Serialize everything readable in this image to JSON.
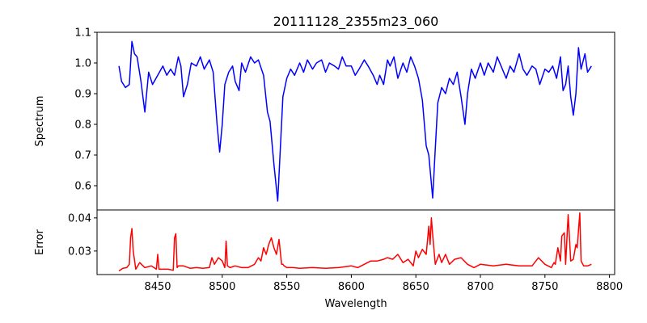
{
  "chart_data": [
    {
      "type": "line",
      "title": "20111128_2355m23_060",
      "ylabel": "Spectrum",
      "xlabel": "",
      "color": "#0000ff",
      "xlim": [
        8403,
        8804
      ],
      "ylim": [
        0.521,
        1.1
      ],
      "yticks": [
        "0.6",
        "0.7",
        "0.8",
        "0.9",
        "1.0",
        "1.1"
      ],
      "x": [
        8420,
        8422,
        8425,
        8428,
        8430,
        8432,
        8434,
        8437,
        8440,
        8443,
        8446,
        8450,
        8454,
        8457,
        8460,
        8463,
        8466,
        8468,
        8470,
        8473,
        8476,
        8480,
        8483,
        8486,
        8490,
        8493,
        8496,
        8498,
        8500,
        8502,
        8505,
        8508,
        8510,
        8513,
        8515,
        8518,
        8522,
        8525,
        8528,
        8532,
        8535,
        8537,
        8540,
        8543,
        8545,
        8547,
        8550,
        8553,
        8556,
        8560,
        8563,
        8566,
        8570,
        8573,
        8577,
        8580,
        8583,
        8587,
        8590,
        8593,
        8596,
        8600,
        8603,
        8606,
        8610,
        8613,
        8617,
        8620,
        8622,
        8625,
        8628,
        8630,
        8633,
        8636,
        8640,
        8643,
        8646,
        8649,
        8652,
        8655,
        8658,
        8660,
        8663,
        8665,
        8667,
        8670,
        8673,
        8676,
        8679,
        8682,
        8685,
        8688,
        8690,
        8693,
        8696,
        8700,
        8703,
        8706,
        8710,
        8713,
        8716,
        8720,
        8723,
        8726,
        8730,
        8733,
        8736,
        8740,
        8743,
        8746,
        8750,
        8753,
        8756,
        8759,
        8762,
        8764,
        8766,
        8768,
        8770,
        8772,
        8774,
        8776,
        8778,
        8781,
        8783,
        8786
      ],
      "y": [
        0.99,
        0.94,
        0.92,
        0.93,
        1.07,
        1.03,
        1.02,
        0.94,
        0.84,
        0.97,
        0.93,
        0.96,
        0.99,
        0.96,
        0.98,
        0.96,
        1.02,
        0.99,
        0.89,
        0.93,
        1.0,
        0.99,
        1.02,
        0.98,
        1.01,
        0.97,
        0.8,
        0.71,
        0.8,
        0.93,
        0.97,
        0.99,
        0.94,
        0.91,
        1.0,
        0.97,
        1.02,
        1.0,
        1.01,
        0.96,
        0.84,
        0.81,
        0.67,
        0.55,
        0.72,
        0.89,
        0.95,
        0.98,
        0.96,
        1.0,
        0.97,
        1.01,
        0.98,
        1.0,
        1.01,
        0.97,
        1.0,
        0.99,
        0.98,
        1.02,
        0.99,
        0.99,
        0.96,
        0.98,
        1.01,
        0.99,
        0.96,
        0.93,
        0.96,
        0.93,
        1.01,
        0.99,
        1.02,
        0.95,
        1.0,
        0.97,
        1.02,
        0.99,
        0.95,
        0.88,
        0.73,
        0.7,
        0.56,
        0.72,
        0.87,
        0.92,
        0.9,
        0.95,
        0.93,
        0.97,
        0.89,
        0.8,
        0.9,
        0.98,
        0.95,
        1.0,
        0.96,
        1.0,
        0.97,
        1.02,
        0.99,
        0.95,
        0.99,
        0.97,
        1.03,
        0.98,
        0.96,
        0.99,
        0.98,
        0.93,
        0.98,
        0.97,
        0.99,
        0.95,
        1.02,
        0.91,
        0.93,
        0.99,
        0.89,
        0.83,
        0.9,
        1.05,
        0.98,
        1.03,
        0.97,
        0.99
      ]
    },
    {
      "type": "line",
      "title": "",
      "ylabel": "Error",
      "xlabel": "Wavelength",
      "color": "#ff0000",
      "xlim": [
        8403,
        8804
      ],
      "ylim": [
        0.0229,
        0.0424
      ],
      "yticks": [
        "0.03",
        "0.04"
      ],
      "xticks": [
        "8450",
        "8500",
        "8550",
        "8600",
        "8650",
        "8700",
        "8750",
        "8800"
      ],
      "x": [
        8420,
        8423,
        8426,
        8428,
        8429,
        8430,
        8431,
        8433,
        8436,
        8440,
        8445,
        8449,
        8450,
        8451,
        8453,
        8458,
        8462,
        8463,
        8464,
        8465,
        8466,
        8470,
        8475,
        8480,
        8485,
        8490,
        8492,
        8494,
        8497,
        8500,
        8502,
        8503,
        8504,
        8506,
        8510,
        8515,
        8520,
        8525,
        8528,
        8530,
        8532,
        8534,
        8536,
        8538,
        8540,
        8542,
        8544,
        8546,
        8547,
        8548,
        8550,
        8555,
        8560,
        8570,
        8580,
        8590,
        8600,
        8605,
        8610,
        8615,
        8620,
        8625,
        8628,
        8632,
        8636,
        8640,
        8644,
        8648,
        8650,
        8652,
        8655,
        8658,
        8660,
        8661,
        8662,
        8663,
        8665,
        8668,
        8670,
        8673,
        8676,
        8680,
        8685,
        8690,
        8695,
        8700,
        8710,
        8720,
        8730,
        8740,
        8745,
        8750,
        8755,
        8757,
        8758,
        8760,
        8762,
        8763,
        8765,
        8766,
        8768,
        8770,
        8772,
        8774,
        8775,
        8777,
        8778,
        8780,
        8783,
        8786
      ],
      "y": [
        0.024,
        0.0248,
        0.025,
        0.026,
        0.034,
        0.0368,
        0.03,
        0.0245,
        0.0265,
        0.025,
        0.0255,
        0.0245,
        0.029,
        0.0245,
        0.0245,
        0.0245,
        0.0242,
        0.034,
        0.0352,
        0.025,
        0.0255,
        0.0255,
        0.0248,
        0.025,
        0.0248,
        0.025,
        0.028,
        0.026,
        0.028,
        0.027,
        0.025,
        0.033,
        0.0255,
        0.025,
        0.0255,
        0.025,
        0.025,
        0.026,
        0.028,
        0.027,
        0.031,
        0.029,
        0.032,
        0.034,
        0.031,
        0.029,
        0.0335,
        0.026,
        0.026,
        0.0255,
        0.025,
        0.025,
        0.0248,
        0.025,
        0.0248,
        0.025,
        0.0255,
        0.025,
        0.026,
        0.027,
        0.027,
        0.0275,
        0.028,
        0.0275,
        0.029,
        0.0265,
        0.0275,
        0.0255,
        0.03,
        0.028,
        0.0305,
        0.029,
        0.0375,
        0.032,
        0.04,
        0.035,
        0.026,
        0.029,
        0.0265,
        0.029,
        0.026,
        0.0275,
        0.028,
        0.026,
        0.025,
        0.026,
        0.0255,
        0.026,
        0.0255,
        0.0255,
        0.028,
        0.026,
        0.025,
        0.0265,
        0.026,
        0.031,
        0.027,
        0.0345,
        0.0355,
        0.026,
        0.041,
        0.027,
        0.0275,
        0.032,
        0.031,
        0.0415,
        0.027,
        0.0255,
        0.0255,
        0.026
      ]
    }
  ]
}
